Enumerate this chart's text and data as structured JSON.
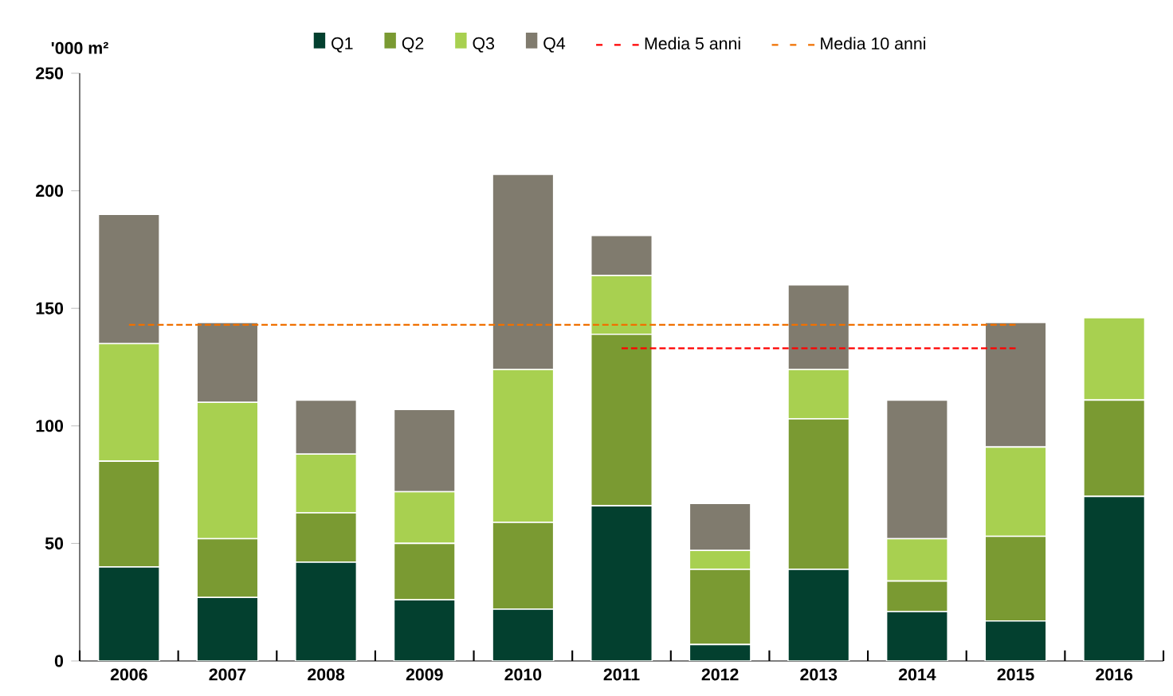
{
  "chart_data": {
    "type": "bar",
    "stacked": true,
    "ylabel": "'000 m²",
    "categories": [
      "2006",
      "2007",
      "2008",
      "2009",
      "2010",
      "2011",
      "2012",
      "2013",
      "2014",
      "2015",
      "2016"
    ],
    "series": [
      {
        "name": "Q1",
        "color": "#03402f",
        "values": [
          40,
          27,
          42,
          26,
          22,
          66,
          7,
          39,
          21,
          17,
          70
        ]
      },
      {
        "name": "Q2",
        "color": "#7a9a32",
        "values": [
          45,
          25,
          21,
          24,
          37,
          73,
          32,
          64,
          13,
          36,
          41
        ]
      },
      {
        "name": "Q3",
        "color": "#a8d050",
        "values": [
          50,
          58,
          25,
          22,
          65,
          25,
          8,
          21,
          18,
          38,
          35
        ]
      },
      {
        "name": "Q4",
        "color": "#807b6e",
        "values": [
          55,
          34,
          23,
          35,
          83,
          17,
          20,
          36,
          59,
          53,
          null
        ]
      },
      {
        "name": "Media 5 anni",
        "type": "line",
        "line_style": "dashed",
        "color": "#ff0000",
        "values": [
          null,
          null,
          null,
          null,
          null,
          133,
          133,
          133,
          133,
          133,
          null
        ]
      },
      {
        "name": "Media 10 anni",
        "type": "line",
        "line_style": "dashed",
        "color": "#f07000",
        "values": [
          143,
          143,
          143,
          143,
          143,
          143,
          143,
          143,
          143,
          143,
          null
        ]
      }
    ],
    "ylim": [
      0,
      250
    ],
    "yticks": [
      0,
      50,
      100,
      150,
      200,
      250
    ],
    "grid": false,
    "legend": "top",
    "marker": "none"
  }
}
